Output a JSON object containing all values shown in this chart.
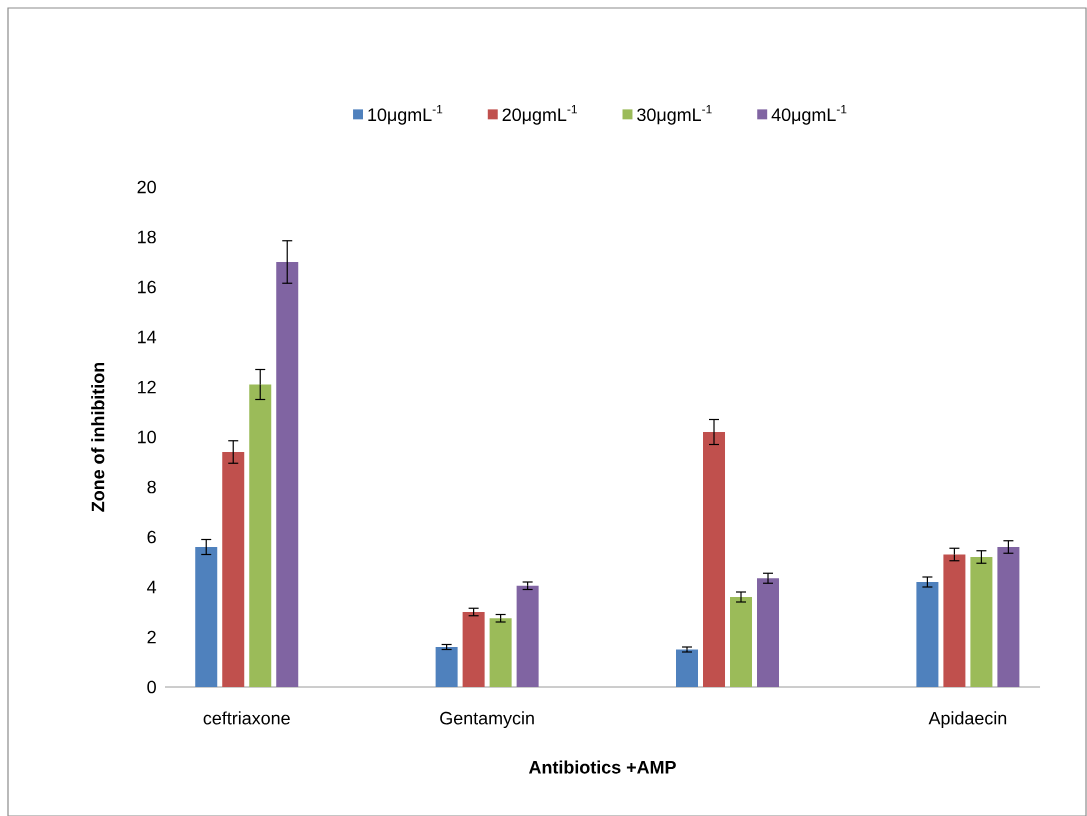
{
  "chart_data": {
    "type": "bar",
    "categories": [
      "ceftriaxone",
      "Gentamycin",
      null,
      "Apidaecin"
    ],
    "series": [
      {
        "name": "10μgmL$^{-1}$",
        "color": "#4f81bd",
        "values": [
          5.6,
          1.6,
          1.5,
          4.2
        ],
        "errors": [
          0.3,
          0.1,
          0.1,
          0.2
        ]
      },
      {
        "name": "20μgmL$^{-1}$",
        "color": "#c0504d",
        "values": [
          9.4,
          3.0,
          10.2,
          5.3
        ],
        "errors": [
          0.45,
          0.15,
          0.5,
          0.25
        ]
      },
      {
        "name": "30μgmL$^{-1}$",
        "color": "#9bbb59",
        "values": [
          12.1,
          2.75,
          3.6,
          5.2
        ],
        "errors": [
          0.6,
          0.15,
          0.2,
          0.25
        ]
      },
      {
        "name": "40μgmL$^{-1}$",
        "color": "#8064a2",
        "values": [
          17.0,
          4.05,
          4.35,
          5.6
        ],
        "errors": [
          0.85,
          0.15,
          0.2,
          0.25
        ]
      }
    ],
    "xlabel": "Antibiotics +AMP",
    "ylabel": "Zone of inhibition",
    "ylim": [
      0,
      20
    ],
    "yticks": [
      0,
      2,
      4,
      6,
      8,
      10,
      12,
      14,
      16,
      18,
      20
    ],
    "legend": "top"
  }
}
